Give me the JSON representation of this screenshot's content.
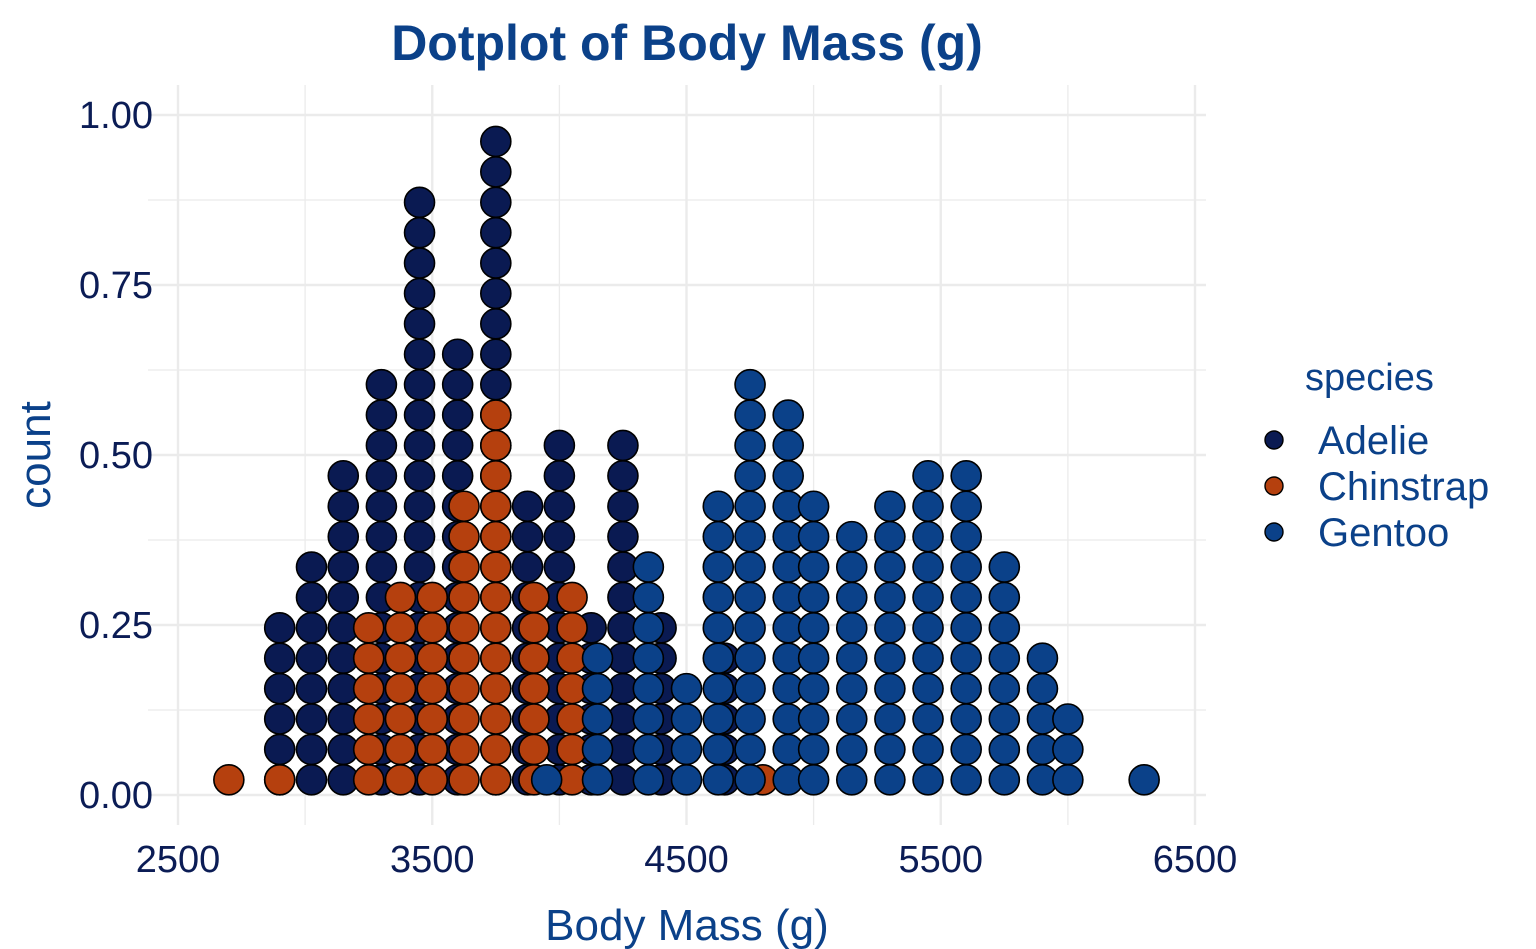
{
  "chart_data": {
    "type": "scatter",
    "subtype": "dotplot",
    "title": "Dotplot of Body Mass (g)",
    "xlabel": "Body Mass (g)",
    "ylabel": "count",
    "xlim": [
      2500,
      6500
    ],
    "ylim": [
      0,
      1.0
    ],
    "x_ticks": [
      "2500",
      "3500",
      "4500",
      "5500",
      "6500"
    ],
    "y_ticks": [
      "0.00",
      "0.25",
      "0.50",
      "0.75",
      "1.00"
    ],
    "grid": true,
    "legend": {
      "title": "species",
      "position": "right",
      "entries": [
        "Adelie",
        "Chinstrap",
        "Gentoo"
      ]
    },
    "colors": {
      "Adelie": "#0a1a52",
      "Chinstrap": "#b5400e",
      "Gentoo": "#0b4189",
      "grid": "#ebebeb",
      "dot_outline": "#000000"
    },
    "dot_height": 0.0447,
    "series": [
      {
        "name": "Adelie",
        "stacks": [
          {
            "x": 2900,
            "count": 6
          },
          {
            "x": 3025,
            "count": 8
          },
          {
            "x": 3150,
            "count": 11
          },
          {
            "x": 3300,
            "count": 14
          },
          {
            "x": 3450,
            "count": 20
          },
          {
            "x": 3600,
            "count": 15
          },
          {
            "x": 3750,
            "count": 22
          },
          {
            "x": 3875,
            "count": 10
          },
          {
            "x": 4000,
            "count": 12
          },
          {
            "x": 4125,
            "count": 6
          },
          {
            "x": 4250,
            "count": 12
          },
          {
            "x": 4400,
            "count": 6
          },
          {
            "x": 4650,
            "count": 5
          }
        ]
      },
      {
        "name": "Chinstrap",
        "stacks": [
          {
            "x": 2700,
            "count": 1
          },
          {
            "x": 2900,
            "count": 1
          },
          {
            "x": 3250,
            "count": 6
          },
          {
            "x": 3375,
            "count": 7
          },
          {
            "x": 3500,
            "count": 7
          },
          {
            "x": 3625,
            "count": 10
          },
          {
            "x": 3750,
            "count": 13
          },
          {
            "x": 3900,
            "count": 7
          },
          {
            "x": 4050,
            "count": 7
          },
          {
            "x": 4800,
            "count": 1
          }
        ]
      },
      {
        "name": "Gentoo",
        "stacks": [
          {
            "x": 3950,
            "count": 1
          },
          {
            "x": 4150,
            "count": 5
          },
          {
            "x": 4350,
            "count": 8
          },
          {
            "x": 4500,
            "count": 4
          },
          {
            "x": 4625,
            "count": 10
          },
          {
            "x": 4750,
            "count": 14
          },
          {
            "x": 4900,
            "count": 13
          },
          {
            "x": 5000,
            "count": 10
          },
          {
            "x": 5150,
            "count": 9
          },
          {
            "x": 5300,
            "count": 10
          },
          {
            "x": 5450,
            "count": 11
          },
          {
            "x": 5600,
            "count": 11
          },
          {
            "x": 5750,
            "count": 8
          },
          {
            "x": 5900,
            "count": 5
          },
          {
            "x": 6000,
            "count": 3
          },
          {
            "x": 6300,
            "count": 1
          }
        ]
      }
    ]
  }
}
